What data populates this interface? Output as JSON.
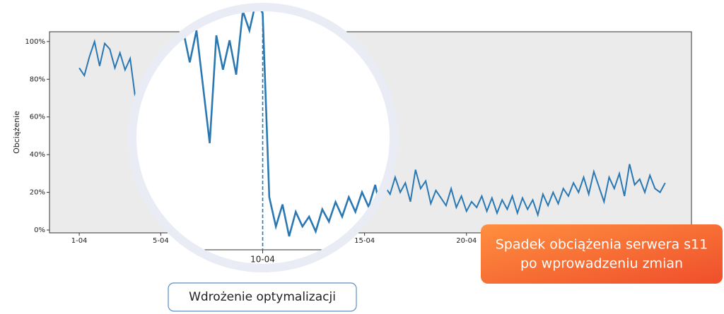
{
  "chart_data": {
    "type": "line",
    "ylabel": "Obciążenie",
    "color": "#2a78b3",
    "x": [
      1,
      1.25,
      1.5,
      1.75,
      2,
      2.25,
      2.5,
      2.75,
      3,
      3.25,
      3.5,
      3.75,
      4,
      4.25,
      4.5,
      4.75,
      5,
      5.25,
      5.5,
      5.75,
      6,
      6.25,
      6.5,
      6.75,
      7,
      7.25,
      7.5,
      7.75,
      8,
      8.25,
      8.5,
      8.75,
      9,
      9.25,
      9.5,
      9.75,
      10,
      10.25,
      10.5,
      10.75,
      11,
      11.25,
      11.5,
      11.75,
      12,
      12.25,
      12.5,
      12.75,
      13,
      13.25,
      13.5,
      13.75,
      14,
      14.25,
      14.5,
      14.75,
      15,
      15.25,
      15.5,
      15.75,
      16,
      16.25,
      16.5,
      16.75,
      17,
      17.25,
      17.5,
      17.75,
      18,
      18.25,
      18.5,
      18.75,
      19,
      19.25,
      19.5,
      19.75,
      20,
      20.25,
      20.5,
      20.75,
      21,
      21.25,
      21.5,
      21.75,
      22,
      22.25,
      22.5,
      22.75,
      23,
      23.25,
      23.5,
      23.75,
      24,
      24.25,
      24.5,
      24.75,
      25,
      25.25,
      25.5,
      25.75,
      26,
      26.25,
      26.5,
      26.75,
      27,
      27.25,
      27.5,
      27.75,
      28,
      28.25,
      28.5,
      28.75,
      29,
      29.25,
      29.5,
      29.75
    ],
    "values": [
      86,
      82,
      92,
      100,
      87,
      99,
      96,
      86,
      94,
      85,
      91,
      70,
      74,
      82,
      76,
      90,
      68,
      80,
      64,
      72,
      82,
      90,
      85,
      94,
      88,
      75,
      88,
      65,
      42,
      86,
      72,
      84,
      70,
      96,
      88,
      100,
      95,
      20,
      8,
      17,
      4,
      14,
      8,
      12,
      6,
      15,
      10,
      18,
      12,
      20,
      14,
      22,
      16,
      25,
      12,
      19,
      26,
      14,
      22,
      18,
      23,
      19,
      28,
      20,
      25,
      15,
      32,
      22,
      26,
      14,
      21,
      17,
      13,
      22,
      12,
      18,
      10,
      15,
      12,
      18,
      10,
      17,
      9,
      16,
      11,
      18,
      9,
      17,
      11,
      16,
      8,
      19,
      13,
      20,
      14,
      22,
      18,
      25,
      20,
      28,
      19,
      31,
      23,
      15,
      28,
      22,
      30,
      18,
      35,
      24,
      27,
      20,
      29,
      22,
      20,
      25
    ],
    "xlim": [
      -0.46,
      31.04
    ],
    "ylim": [
      -1.5,
      105.2
    ],
    "xticks": [
      {
        "value": 1,
        "label": "1-04"
      },
      {
        "value": 5,
        "label": "5-04"
      },
      {
        "value": 10,
        "label": "10-04"
      },
      {
        "value": 15,
        "label": "15-04"
      },
      {
        "value": 20,
        "label": "20-04"
      }
    ],
    "yticks": [
      {
        "value": 0,
        "label": "0%"
      },
      {
        "value": 20,
        "label": "20%"
      },
      {
        "value": 40,
        "label": "40%"
      },
      {
        "value": 60,
        "label": "60%"
      },
      {
        "value": 80,
        "label": "80%"
      },
      {
        "value": 100,
        "label": "100%"
      }
    ],
    "marker_label": "Wdrożenie optymalizacji",
    "callout": [
      "Spadek obciążenia serwera s11",
      "po wprowadzeniu zmian"
    ]
  }
}
